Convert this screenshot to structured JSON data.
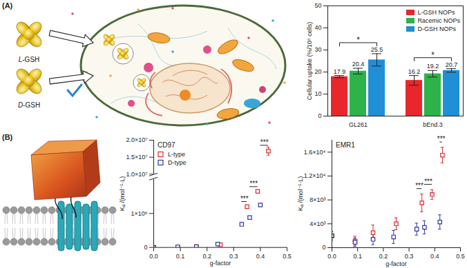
{
  "figure": {
    "panel_labels": [
      "(A)",
      "(B)"
    ],
    "illustration_labels": [
      "L-GSH",
      "D-GSH"
    ]
  },
  "chart_data": [
    {
      "type": "bar",
      "categories": [
        "GL261",
        "bEnd.3"
      ],
      "series": [
        {
          "name": "L-GSH NOPs",
          "color": "#e8262b",
          "values": [
            17.9,
            16.2
          ],
          "errors": [
            0.5,
            2.2
          ]
        },
        {
          "name": "Racemic NOPs",
          "color": "#2db34a",
          "values": [
            20.4,
            19.2
          ],
          "errors": [
            1.3,
            1.5
          ]
        },
        {
          "name": "D-GSH NOPs",
          "color": "#1f8fd6",
          "values": [
            25.5,
            20.7
          ],
          "errors": [
            2.8,
            0.8
          ]
        }
      ],
      "ylabel": "Cellular uptake (%/10⁵ cells)",
      "ylim": [
        0,
        50
      ],
      "yticks": [
        0,
        10,
        20,
        30,
        40,
        50
      ],
      "data_labels": true,
      "legend": "top-right",
      "significance": [
        {
          "category": "GL261",
          "between": [
            "L-GSH NOPs",
            "D-GSH NOPs"
          ],
          "label": "*"
        },
        {
          "category": "bEnd.3",
          "between": [
            "L-GSH NOPs",
            "D-GSH NOPs"
          ],
          "label": "*"
        }
      ]
    },
    {
      "type": "scatter",
      "title": "CD97",
      "xlabel": "g-factor",
      "ylabel": "Kₐ /(mol⁻¹·L)",
      "xlim": [
        0,
        0.5
      ],
      "xticks": [
        {
          "value": 0,
          "label": "0.0"
        },
        0.1,
        0.2,
        0.3,
        0.4,
        0.5
      ],
      "ylim": [
        [
          0,
          2000000
        ],
        [
          10000000,
          20000000
        ]
      ],
      "yticks": [
        [
          0,
          {
            "value": 1000000,
            "label": "1×10⁶"
          }
        ],
        [
          {
            "value": 10000000,
            "label": "1.0×10⁷"
          },
          {
            "value": 15000000,
            "label": "1.5×10⁷"
          },
          {
            "value": 20000000,
            "label": "2.0×10⁷"
          }
        ]
      ],
      "marker": "square",
      "legend": "top-left",
      "series": [
        {
          "name": null,
          "color": "#000000",
          "x": [
            0
          ],
          "values": [
            0
          ],
          "errors": [
            0
          ]
        },
        {
          "name": "L-type",
          "color": "#e4262b",
          "x": [
            0.09,
            0.16,
            0.25,
            0.35,
            0.39,
            0.43
          ],
          "values": [
            20000,
            30000,
            80000,
            1200000,
            1650000,
            16800000
          ],
          "errors": [
            10000,
            15000,
            30000,
            50000,
            40000,
            1200000
          ]
        },
        {
          "name": "D-type",
          "color": "#2d3a9e",
          "x": [
            0.09,
            0.16,
            0.24,
            0.33,
            0.36,
            0.4
          ],
          "values": [
            15000,
            20000,
            100000,
            680000,
            880000,
            1250000
          ],
          "errors": [
            10000,
            10000,
            30000,
            30000,
            40000,
            30000
          ]
        }
      ],
      "significance": [
        {
          "point": 3,
          "between": [
            "L-type",
            "D-type"
          ],
          "label": "***"
        },
        {
          "point": 4,
          "between": [
            "L-type",
            "D-type"
          ],
          "label": "***"
        },
        {
          "point": 5,
          "between": [
            "L-type",
            "D-type"
          ],
          "label": "***"
        }
      ]
    },
    {
      "type": "scatter",
      "title": "EMR1",
      "xlabel": "g-factor",
      "ylabel": "Kₐ /(mol⁻¹·L)",
      "xlim": [
        0,
        0.5
      ],
      "xticks": [
        {
          "value": 0,
          "label": "0.0"
        },
        0.1,
        0.2,
        0.3,
        0.4,
        0.5
      ],
      "ylim": [
        0,
        18000
      ],
      "yticks": [
        0,
        {
          "value": 4000,
          "label": "4×10³"
        },
        {
          "value": 8000,
          "label": "8×10³"
        },
        {
          "value": 12000,
          "label": "1.2×10⁴"
        },
        {
          "value": 16000,
          "label": "1.6×10⁴"
        }
      ],
      "marker": "square",
      "series": [
        {
          "name": null,
          "color": "#000000",
          "x": [
            0
          ],
          "values": [
            2000
          ],
          "errors": [
            700
          ]
        },
        {
          "name": "L-type",
          "color": "#e4262b",
          "x": [
            0.09,
            0.16,
            0.25,
            0.35,
            0.39,
            0.43
          ],
          "values": [
            1100,
            2500,
            4000,
            7500,
            8900,
            15500
          ],
          "errors": [
            800,
            1300,
            1000,
            1500,
            800,
            1300
          ]
        },
        {
          "name": "D-type",
          "color": "#2d3a9e",
          "x": [
            0.09,
            0.16,
            0.24,
            0.33,
            0.36,
            0.42
          ],
          "values": [
            900,
            1400,
            1800,
            3100,
            3400,
            4300
          ],
          "errors": [
            700,
            900,
            1100,
            1000,
            1100,
            1200
          ]
        }
      ],
      "significance": [
        {
          "point": 3,
          "between": [
            "L-type",
            "D-type"
          ],
          "label": "***"
        },
        {
          "point": 4,
          "between": [
            "L-type",
            "D-type"
          ],
          "label": "***"
        },
        {
          "point": 5,
          "between": [
            "L-type",
            "D-type"
          ],
          "label": "***"
        }
      ]
    }
  ]
}
